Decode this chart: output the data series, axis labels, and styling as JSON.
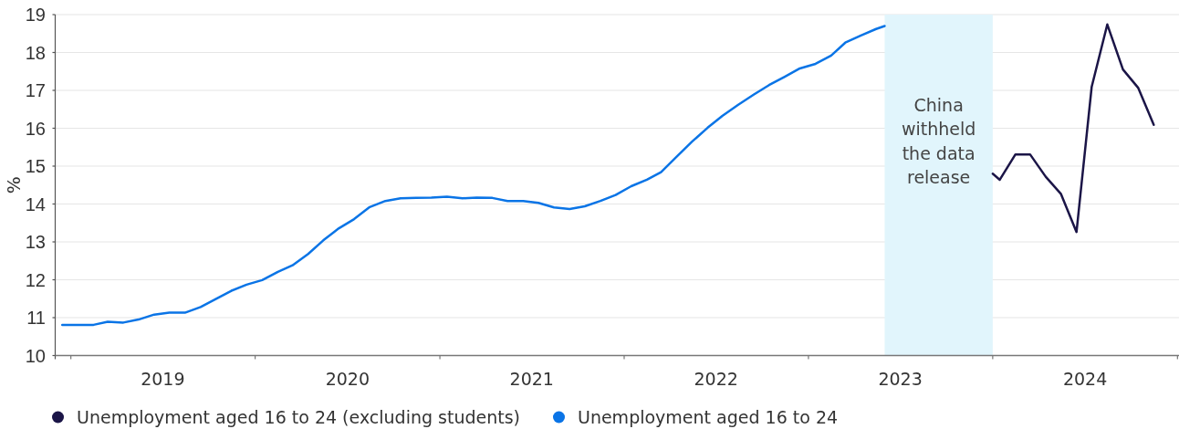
{
  "chart_data": {
    "type": "line",
    "ylabel": "%",
    "series": [
      {
        "name": "Unemployment aged 16 to 24 (excluding students)",
        "color": "#1b1547",
        "x": [
          "2024-01-01",
          "2024-01-15",
          "2024-02-15",
          "2024-03-15",
          "2024-04-15",
          "2024-05-15",
          "2024-06-15",
          "2024-07-15",
          "2024-08-15",
          "2024-09-15",
          "2024-10-15",
          "2024-11-15"
        ],
        "values": [
          14.8,
          14.64,
          15.31,
          15.31,
          14.72,
          14.27,
          13.26,
          17.09,
          18.74,
          17.55,
          17.07,
          16.09
        ]
      },
      {
        "name": "Unemployment aged 16 to 24",
        "color": "#0a74e6",
        "x": [
          "2018-12-15",
          "2019-01-15",
          "2019-02-15",
          "2019-03-15",
          "2019-04-15",
          "2019-05-15",
          "2019-06-15",
          "2019-07-15",
          "2019-08-15",
          "2019-09-15",
          "2019-10-15",
          "2019-11-15",
          "2019-12-15",
          "2020-01-15",
          "2020-02-15",
          "2020-03-15",
          "2020-04-15",
          "2020-05-15",
          "2020-06-15",
          "2020-07-15",
          "2020-08-15",
          "2020-09-15",
          "2020-10-15",
          "2020-11-15",
          "2020-12-15",
          "2021-01-15",
          "2021-02-15",
          "2021-03-15",
          "2021-04-15",
          "2021-05-15",
          "2021-06-15",
          "2021-07-15",
          "2021-08-15",
          "2021-09-15",
          "2021-10-15",
          "2021-11-15",
          "2021-12-15",
          "2022-01-15",
          "2022-02-15",
          "2022-03-15",
          "2022-04-15",
          "2022-05-15",
          "2022-06-15",
          "2022-07-15",
          "2022-08-15",
          "2022-09-15",
          "2022-10-15",
          "2022-11-15",
          "2022-12-15",
          "2023-01-15",
          "2023-02-15",
          "2023-03-15",
          "2023-04-15",
          "2023-05-15",
          "2023-06-01"
        ],
        "values": [
          10.81,
          10.81,
          10.81,
          10.89,
          10.87,
          10.95,
          11.08,
          11.13,
          11.13,
          11.28,
          11.49,
          11.71,
          11.87,
          11.99,
          12.21,
          12.38,
          12.68,
          13.04,
          13.36,
          13.6,
          13.92,
          14.08,
          14.15,
          14.16,
          14.17,
          14.19,
          14.15,
          14.17,
          14.16,
          14.08,
          14.08,
          14.03,
          13.91,
          13.87,
          13.94,
          14.08,
          14.24,
          14.47,
          14.64,
          14.84,
          15.25,
          15.64,
          16.01,
          16.33,
          16.62,
          16.89,
          17.14,
          17.36,
          17.58,
          17.7,
          17.92,
          18.26,
          18.45,
          18.62,
          18.7
        ]
      }
    ],
    "xlim": [
      "2018-12-01",
      "2025-01-04"
    ],
    "xticks": [
      {
        "value": "2019-01-01",
        "label": null
      },
      {
        "value": "2019-07-02",
        "label": "2019"
      },
      {
        "value": "2020-01-01",
        "label": null
      },
      {
        "value": "2020-07-02",
        "label": "2020"
      },
      {
        "value": "2021-01-01",
        "label": null
      },
      {
        "value": "2021-07-02",
        "label": "2021"
      },
      {
        "value": "2022-01-01",
        "label": null
      },
      {
        "value": "2022-07-02",
        "label": "2022"
      },
      {
        "value": "2023-01-01",
        "label": null
      },
      {
        "value": "2023-07-02",
        "label": "2023"
      },
      {
        "value": "2024-01-01",
        "label": null
      },
      {
        "value": "2024-07-02",
        "label": "2024"
      },
      {
        "value": "2025-01-01",
        "label": null
      }
    ],
    "ylim": [
      10,
      19
    ],
    "yticks": [
      10,
      11,
      12,
      13,
      14,
      15,
      16,
      17,
      18,
      19
    ],
    "grid": "y",
    "legend": "bottom",
    "bands": [
      {
        "axis": "x",
        "from": "2023-06-01",
        "to": "2024-01-01",
        "label": "China withheld the data release",
        "color": "#e1f5fc"
      }
    ]
  }
}
